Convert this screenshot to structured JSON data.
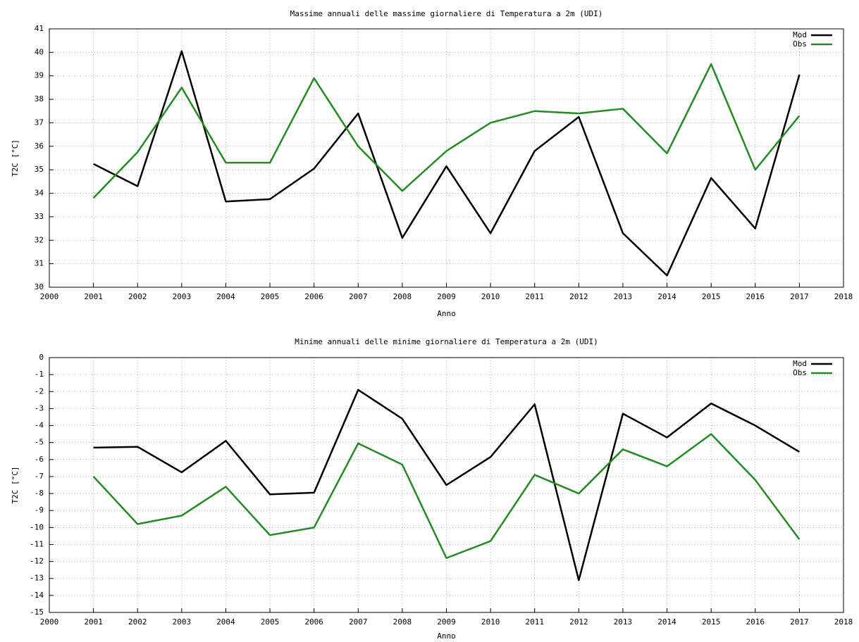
{
  "chart_data": [
    {
      "type": "line",
      "title": "Massime annuali delle massime giornaliere di Temperatura a 2m (UDI)",
      "x_label": "Anno",
      "y_label": "T2C [°C]",
      "x": [
        2001,
        2002,
        2003,
        2004,
        2005,
        2006,
        2007,
        2008,
        2009,
        2010,
        2011,
        2012,
        2013,
        2014,
        2015,
        2016,
        2017
      ],
      "series": [
        {
          "name": "Mod",
          "color": "#000000",
          "values": [
            35.25,
            34.3,
            40.05,
            33.65,
            33.75,
            35.05,
            37.4,
            32.1,
            35.15,
            32.3,
            35.8,
            37.25,
            32.3,
            30.5,
            34.65,
            32.5,
            39.05
          ]
        },
        {
          "name": "Obs",
          "color": "#228b22",
          "values": [
            33.8,
            35.75,
            38.5,
            35.3,
            35.3,
            38.9,
            36.0,
            34.1,
            35.8,
            37.0,
            37.5,
            37.4,
            37.6,
            35.7,
            39.5,
            35.0,
            37.3
          ]
        }
      ],
      "xlim": [
        2000,
        2018
      ],
      "xticks": [
        2000,
        2001,
        2002,
        2003,
        2004,
        2005,
        2006,
        2007,
        2008,
        2009,
        2010,
        2011,
        2012,
        2013,
        2014,
        2015,
        2016,
        2017,
        2018
      ],
      "ylim": [
        30,
        41
      ],
      "yticks": [
        30,
        31,
        32,
        33,
        34,
        35,
        36,
        37,
        38,
        39,
        40,
        41
      ],
      "grid": true,
      "legend": "top-right"
    },
    {
      "type": "line",
      "title": "Minime annuali delle minime giornaliere di Temperatura a 2m (UDI)",
      "x_label": "Anno",
      "y_label": "T2C [°C]",
      "x": [
        2001,
        2002,
        2003,
        2004,
        2005,
        2006,
        2007,
        2008,
        2009,
        2010,
        2011,
        2012,
        2013,
        2014,
        2015,
        2016,
        2017
      ],
      "series": [
        {
          "name": "Mod",
          "color": "#000000",
          "values": [
            -5.3,
            -5.25,
            -6.75,
            -4.9,
            -8.05,
            -7.95,
            -1.9,
            -3.6,
            -7.5,
            -5.85,
            -2.75,
            -13.1,
            -3.3,
            -4.7,
            -2.7,
            -4.0,
            -5.55
          ]
        },
        {
          "name": "Obs",
          "color": "#228b22",
          "values": [
            -7.0,
            -9.8,
            -9.3,
            -7.6,
            -10.45,
            -10.0,
            -5.05,
            -6.3,
            -11.8,
            -10.8,
            -6.9,
            -8.0,
            -5.4,
            -6.4,
            -4.5,
            -7.2,
            -10.7
          ]
        }
      ],
      "xlim": [
        2000,
        2018
      ],
      "xticks": [
        2000,
        2001,
        2002,
        2003,
        2004,
        2005,
        2006,
        2007,
        2008,
        2009,
        2010,
        2011,
        2012,
        2013,
        2014,
        2015,
        2016,
        2017,
        2018
      ],
      "ylim": [
        -15,
        0
      ],
      "yticks": [
        -15,
        -14,
        -13,
        -12,
        -11,
        -10,
        -9,
        -8,
        -7,
        -6,
        -5,
        -4,
        -3,
        -2,
        -1,
        0
      ],
      "grid": true,
      "legend": "top-right"
    }
  ]
}
